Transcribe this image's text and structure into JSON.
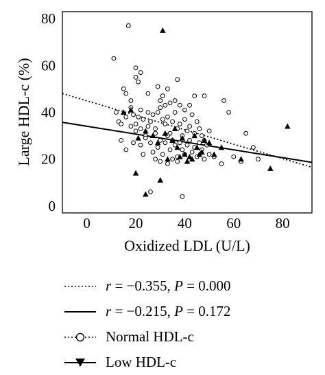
{
  "chart_data": {
    "type": "scatter",
    "xlabel": "Oxidized LDL (U/L)",
    "ylabel": "Large HDL-c (%)",
    "xlim": [
      -10,
      92
    ],
    "ylim": [
      -3,
      83
    ],
    "x_ticks": [
      0,
      20,
      40,
      60,
      80
    ],
    "y_ticks": [
      0,
      20,
      40,
      60,
      80
    ],
    "grid": false,
    "legend_position": "below plot",
    "series": [
      {
        "name": "Normal HDL-c",
        "marker": "circle-open",
        "points": [
          [
            17,
            77
          ],
          [
            11,
            63
          ],
          [
            20,
            59
          ],
          [
            22,
            57
          ],
          [
            20,
            55
          ],
          [
            21,
            53
          ],
          [
            15,
            50
          ],
          [
            16,
            48
          ],
          [
            18,
            45
          ],
          [
            25,
            48
          ],
          [
            29,
            51
          ],
          [
            33,
            50
          ],
          [
            37,
            54
          ],
          [
            44,
            47
          ],
          [
            48,
            47
          ],
          [
            42,
            43
          ],
          [
            56,
            45
          ],
          [
            58,
            40
          ],
          [
            65,
            31
          ],
          [
            68,
            25
          ],
          [
            12,
            40
          ],
          [
            13,
            36
          ],
          [
            14,
            35
          ],
          [
            16,
            38
          ],
          [
            18,
            42
          ],
          [
            19,
            39
          ],
          [
            20,
            35
          ],
          [
            21,
            38
          ],
          [
            22,
            33
          ],
          [
            23,
            37
          ],
          [
            24,
            30
          ],
          [
            25,
            34
          ],
          [
            26,
            36
          ],
          [
            27,
            39
          ],
          [
            28,
            33
          ],
          [
            29,
            40
          ],
          [
            30,
            42
          ],
          [
            31,
            37
          ],
          [
            32,
            35
          ],
          [
            33,
            38
          ],
          [
            34,
            31
          ],
          [
            35,
            36
          ],
          [
            36,
            40
          ],
          [
            37,
            33
          ],
          [
            38,
            35
          ],
          [
            39,
            30
          ],
          [
            40,
            37
          ],
          [
            41,
            32
          ],
          [
            42,
            34
          ],
          [
            43,
            39
          ],
          [
            44,
            31
          ],
          [
            45,
            36
          ],
          [
            46,
            33
          ],
          [
            47,
            30
          ],
          [
            48,
            28
          ],
          [
            49,
            26
          ],
          [
            50,
            32
          ],
          [
            14,
            28
          ],
          [
            16,
            24
          ],
          [
            19,
            27
          ],
          [
            20,
            32
          ],
          [
            22,
            26
          ],
          [
            24,
            29
          ],
          [
            26,
            27
          ],
          [
            27,
            23
          ],
          [
            28,
            31
          ],
          [
            29,
            25
          ],
          [
            30,
            28
          ],
          [
            31,
            22
          ],
          [
            32,
            27
          ],
          [
            33,
            30
          ],
          [
            34,
            24
          ],
          [
            35,
            28
          ],
          [
            36,
            26
          ],
          [
            37,
            21
          ],
          [
            38,
            27
          ],
          [
            39,
            24
          ],
          [
            40,
            22
          ],
          [
            41,
            26
          ],
          [
            42,
            28
          ],
          [
            43,
            23
          ],
          [
            44,
            25
          ],
          [
            45,
            21
          ],
          [
            46,
            27
          ],
          [
            47,
            24
          ],
          [
            48,
            20
          ],
          [
            50,
            22
          ],
          [
            52,
            21
          ],
          [
            55,
            18
          ],
          [
            60,
            21
          ],
          [
            63,
            19
          ],
          [
            70,
            20
          ],
          [
            30,
            45
          ],
          [
            31,
            47
          ],
          [
            32,
            43
          ],
          [
            34,
            44
          ],
          [
            36,
            45
          ],
          [
            38,
            43
          ],
          [
            40,
            41
          ],
          [
            25,
            40
          ],
          [
            22,
            41
          ],
          [
            18,
            34
          ],
          [
            35,
            20
          ],
          [
            37,
            19
          ],
          [
            33,
            18
          ],
          [
            26,
            6
          ],
          [
            39,
            4
          ],
          [
            23,
            22
          ],
          [
            28,
            20
          ],
          [
            30,
            19
          ]
        ]
      },
      {
        "name": "Low HDL-c",
        "marker": "triangle-filled",
        "points": [
          [
            31,
            75
          ],
          [
            15,
            40
          ],
          [
            18,
            41
          ],
          [
            21,
            29
          ],
          [
            20,
            14
          ],
          [
            24,
            5
          ],
          [
            30,
            11
          ],
          [
            33,
            20
          ],
          [
            35,
            28
          ],
          [
            37,
            25
          ],
          [
            38,
            21
          ],
          [
            40,
            22
          ],
          [
            41,
            19
          ],
          [
            42,
            21
          ],
          [
            43,
            20
          ],
          [
            45,
            25
          ],
          [
            46,
            22
          ],
          [
            47,
            23
          ],
          [
            48,
            28
          ],
          [
            50,
            27
          ],
          [
            52,
            22
          ],
          [
            55,
            25
          ],
          [
            63,
            20
          ],
          [
            75,
            16
          ],
          [
            82,
            34
          ],
          [
            24,
            32
          ],
          [
            27,
            30
          ],
          [
            29,
            27
          ],
          [
            32,
            31
          ],
          [
            36,
            33
          ],
          [
            39,
            29
          ],
          [
            44,
            30
          ]
        ]
      }
    ],
    "fit_lines": [
      {
        "style": "dotted",
        "x": [
          -10,
          92
        ],
        "y": [
          48.0,
          16.5
        ]
      },
      {
        "style": "solid",
        "x": [
          -10,
          92
        ],
        "y": [
          35.7,
          18.6
        ]
      }
    ]
  },
  "legend": {
    "items": [
      {
        "text_r": "r",
        "text_mid": " = −0.355, ",
        "text_p": "P",
        "text_end": " = 0.000"
      },
      {
        "text_r": "r",
        "text_mid": " = −0.215, ",
        "text_p": "P",
        "text_end": " = 0.172"
      },
      {
        "text": "Normal HDL-c"
      },
      {
        "text": "Low HDL-c"
      }
    ]
  }
}
